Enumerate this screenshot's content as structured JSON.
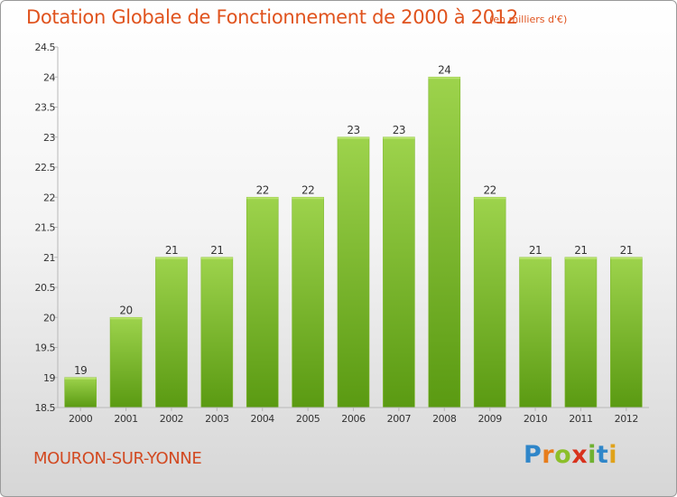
{
  "chart_data": {
    "type": "bar",
    "title": "Dotation Globale de Fonctionnement de 2000 à 2012",
    "subtitle": "(en milliers d'€)",
    "categories": [
      "2000",
      "2001",
      "2002",
      "2003",
      "2004",
      "2005",
      "2006",
      "2007",
      "2008",
      "2009",
      "2010",
      "2011",
      "2012"
    ],
    "values": [
      19,
      20,
      21,
      21,
      22,
      22,
      23,
      23,
      24,
      22,
      21,
      21,
      21
    ],
    "data_labels": [
      "19",
      "20",
      "21",
      "21",
      "22",
      "22",
      "23",
      "23",
      "24",
      "22",
      "21",
      "21",
      "21"
    ],
    "ylim": [
      18.5,
      24.5
    ],
    "yticks": [
      "18.5",
      "19",
      "19.5",
      "20",
      "20.5",
      "21",
      "21.5",
      "22",
      "22.5",
      "23",
      "23.5",
      "24",
      "24.5"
    ],
    "xlabel": "",
    "ylabel": "",
    "grid": false,
    "legend": "none"
  },
  "footer": {
    "city": "MOURON-SUR-YONNE",
    "logo_text": "Proxiti"
  },
  "colors": {
    "title": "#e0531e",
    "bar_top": "#9dd34c",
    "bar_bottom": "#5a9a12",
    "city": "#d24a22"
  }
}
